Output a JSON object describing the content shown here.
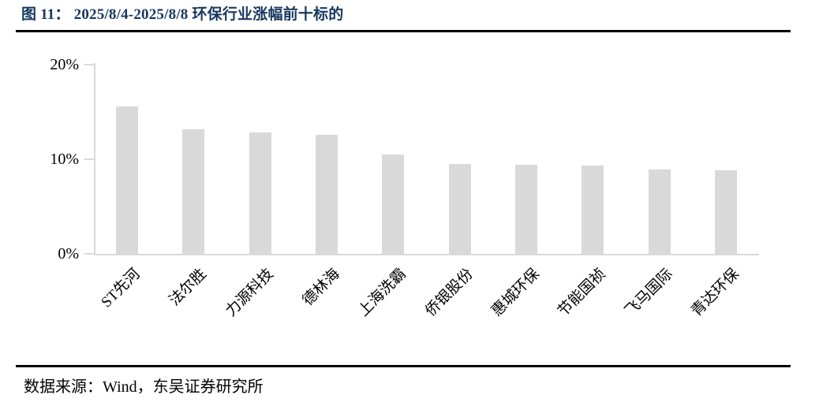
{
  "header": {
    "title": "图 11：  2025/8/4-2025/8/8 环保行业涨幅前十标的"
  },
  "chart_data": {
    "type": "bar",
    "title": "2025/8/4-2025/8/8 环保行业涨幅前十标的",
    "categories": [
      "ST先河",
      "法尔胜",
      "力源科技",
      "德林海",
      "上海洗霸",
      "侨银股份",
      "惠城环保",
      "节能国祯",
      "飞马国际",
      "青达环保"
    ],
    "values": [
      15.6,
      13.2,
      12.8,
      12.6,
      10.5,
      9.5,
      9.4,
      9.3,
      8.9,
      8.8
    ],
    "unit": "%",
    "xlabel": "",
    "ylabel": "",
    "ylim": [
      0,
      20
    ],
    "yticks": [
      {
        "label": "0%",
        "value": 0
      },
      {
        "label": "10%",
        "value": 10
      },
      {
        "label": "20%",
        "value": 20
      }
    ],
    "grid": false,
    "legend": false,
    "bar_color": "#d9d9d9",
    "axis_color": "#d9d9d9"
  },
  "footer": {
    "source": "数据来源：Wind，东吴证券研究所"
  },
  "colors": {
    "title": "#17375e",
    "rule": "#000000",
    "text": "#000000"
  }
}
